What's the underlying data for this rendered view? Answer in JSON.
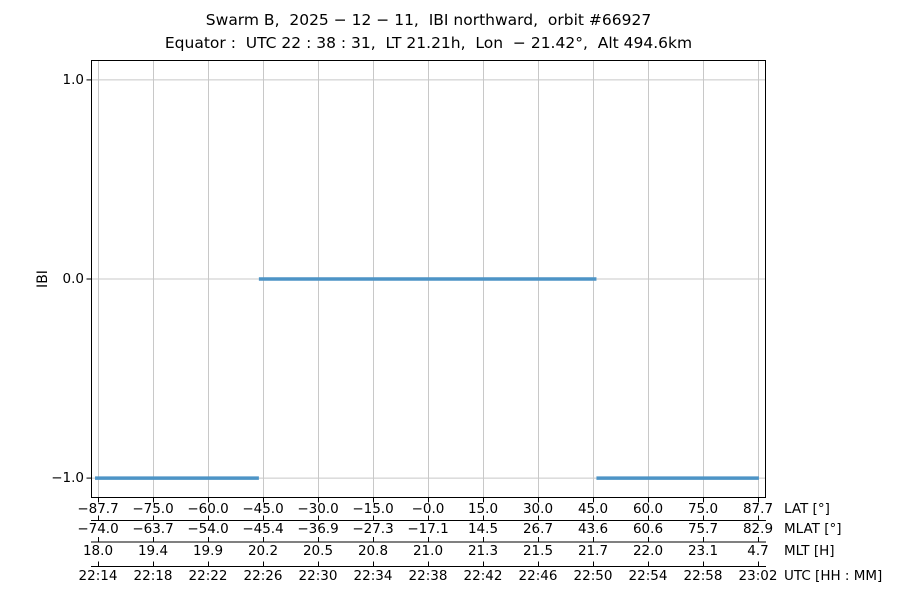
{
  "chart_data": {
    "type": "line",
    "line_style": "horizontal-steps",
    "title": "Swarm B,  2025 − 12 − 11,  IBI northward,  orbit #66927",
    "subtitle": "Equator :  UTC 22 : 38 : 31,  LT 21.21h,  Lon  − 21.42°,  Alt 494.6km",
    "ylabel": "IBI",
    "ylim": [
      -1.1,
      1.1
    ],
    "grid": true,
    "legend": "none",
    "yticks": [
      {
        "value": 1.0,
        "label": "1.0"
      },
      {
        "value": 0.0,
        "label": "0.0"
      },
      {
        "value": -1.0,
        "label": "−1.0"
      }
    ],
    "x_axes": [
      {
        "name": "LAT [°]",
        "ticks": [
          "−87.7",
          "−75.0",
          "−60.0",
          "−45.0",
          "−30.0",
          "−15.0",
          "−0.0",
          "15.0",
          "30.0",
          "45.0",
          "60.0",
          "75.0",
          "87.7"
        ]
      },
      {
        "name": "MLAT [°]",
        "ticks": [
          "−74.0",
          "−63.7",
          "−54.0",
          "−45.4",
          "−36.9",
          "−27.3",
          "−17.1",
          "14.5",
          "26.7",
          "43.6",
          "60.6",
          "75.7",
          "82.9"
        ]
      },
      {
        "name": "MLT [H]",
        "ticks": [
          "18.0",
          "19.4",
          "19.9",
          "20.2",
          "20.5",
          "20.8",
          "21.0",
          "21.3",
          "21.5",
          "21.7",
          "22.0",
          "23.1",
          "4.7"
        ]
      },
      {
        "name": "UTC [HH : MM]",
        "ticks": [
          "22:14",
          "22:18",
          "22:22",
          "22:26",
          "22:30",
          "22:34",
          "22:38",
          "22:42",
          "22:46",
          "22:50",
          "22:54",
          "22:58",
          "23:02"
        ]
      }
    ],
    "utc_axis_index": 3,
    "series": [
      {
        "name": "IBI",
        "color": "#4d94c6",
        "segments": [
          {
            "utc_start": "22:13:47",
            "utc_end": "22:25:42",
            "value": -1.0
          },
          {
            "utc_start": "22:25:42",
            "utc_end": "22:50:15",
            "value": 0.0
          },
          {
            "utc_start": "22:50:15",
            "utc_end": "23:02:04",
            "value": -1.0
          }
        ]
      }
    ],
    "colors": {
      "line": "#4d94c6",
      "grid": "#c8c8c8",
      "axis": "#000000",
      "text": "#000000",
      "background": "#ffffff"
    }
  }
}
